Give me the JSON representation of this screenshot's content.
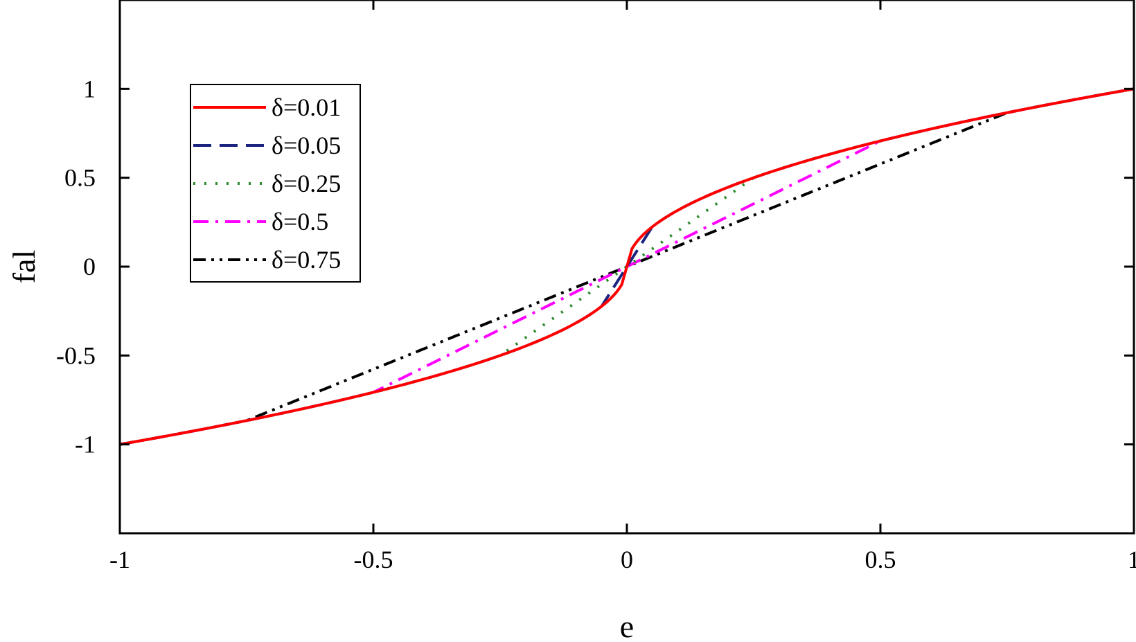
{
  "chart_data": {
    "type": "line",
    "title": "",
    "xlabel": "e",
    "ylabel": "fal",
    "xlim": [
      -1,
      1
    ],
    "ylim": [
      -1.5,
      1.5
    ],
    "xticks": [
      -1,
      -0.5,
      0,
      0.5,
      1
    ],
    "xtick_labels": [
      "-1",
      "-0.5",
      "0",
      "0.5",
      "1"
    ],
    "yticks": [
      -1,
      -0.5,
      0,
      0.5,
      1
    ],
    "ytick_labels": [
      "-1",
      "-0.5",
      "0",
      "0.5",
      "1"
    ],
    "grid": false,
    "legend_position": "upper-left",
    "alpha": 0.5,
    "series": [
      {
        "name": "δ=0.01",
        "delta": 0.01,
        "color": "#ff0000",
        "dash": "solid"
      },
      {
        "name": "δ=0.05",
        "delta": 0.05,
        "color": "#1a237e",
        "dash": "dash"
      },
      {
        "name": "δ=0.25",
        "delta": 0.25,
        "color": "#2e8b2e",
        "dash": "dot"
      },
      {
        "name": "δ=0.5",
        "delta": 0.5,
        "color": "#ff00ff",
        "dash": "dashdot"
      },
      {
        "name": "δ=0.75",
        "delta": 0.75,
        "color": "#000000",
        "dash": "dashdotdot"
      }
    ]
  }
}
